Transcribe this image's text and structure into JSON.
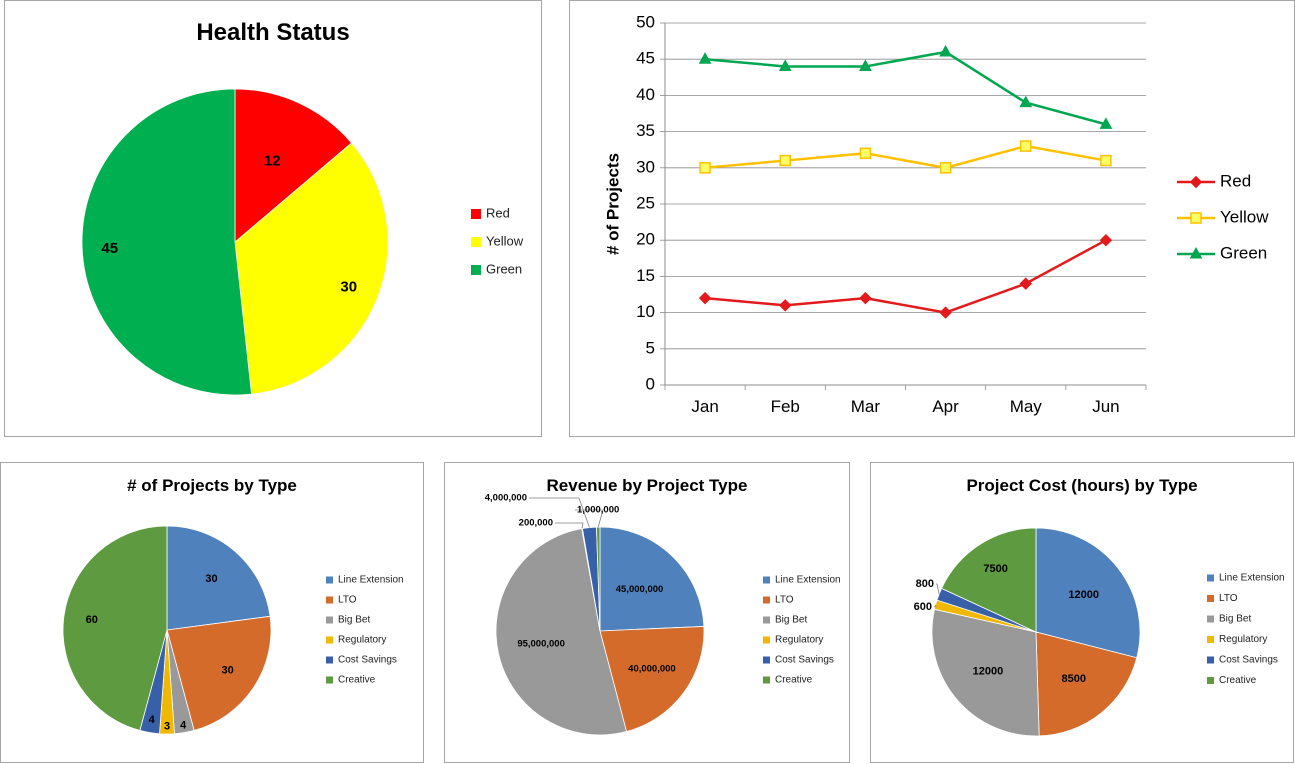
{
  "chart_data": [
    {
      "id": "health-status",
      "type": "pie",
      "title": "Health Status",
      "legend_position": "right",
      "categories": [
        "Red",
        "Yellow",
        "Green"
      ],
      "values": [
        12,
        30,
        45
      ],
      "value_labels": [
        "12",
        "30",
        "45"
      ],
      "colors": [
        "#ff0000",
        "#ffff00",
        "#00b050"
      ]
    },
    {
      "id": "projects-trend",
      "type": "line",
      "title": "",
      "xlabel": "",
      "ylabel": "# of Projects",
      "categories": [
        "Jan",
        "Feb",
        "Mar",
        "Apr",
        "May",
        "Jun"
      ],
      "ylim": [
        0,
        50
      ],
      "yticks": [
        "0",
        "5",
        "10",
        "15",
        "20",
        "25",
        "30",
        "35",
        "40",
        "45",
        "50"
      ],
      "grid": true,
      "legend_position": "right",
      "series": [
        {
          "name": "Red",
          "values": [
            12,
            11,
            12,
            10,
            14,
            20
          ],
          "color": "#e31a1c",
          "marker": "diamond"
        },
        {
          "name": "Yellow",
          "values": [
            30,
            31,
            32,
            30,
            33,
            31
          ],
          "color": "#ffc000",
          "marker": "square"
        },
        {
          "name": "Green",
          "values": [
            45,
            44,
            44,
            46,
            39,
            36
          ],
          "color": "#00a650",
          "marker": "triangle"
        }
      ]
    },
    {
      "id": "projects-by-type",
      "type": "pie",
      "title": "# of Projects by Type",
      "legend_position": "right",
      "categories": [
        "Line Extension",
        "LTO",
        "Big Bet",
        "Regulatory",
        "Cost Savings",
        "Creative"
      ],
      "values": [
        30,
        30,
        4,
        3,
        4,
        60
      ],
      "value_labels": [
        "30",
        "30",
        "4",
        "3",
        "4",
        "60"
      ],
      "colors": [
        "#4f81bd",
        "#d46b2b",
        "#999999",
        "#f0b800",
        "#3860a8",
        "#5e9a40"
      ]
    },
    {
      "id": "revenue-by-type",
      "type": "pie",
      "title": "Revenue by Project Type",
      "legend_position": "right",
      "categories": [
        "Line Extension",
        "LTO",
        "Big Bet",
        "Regulatory",
        "Cost Savings",
        "Creative"
      ],
      "values": [
        45000000,
        40000000,
        95000000,
        200000,
        4000000,
        1000000
      ],
      "value_labels": [
        "45,000,000",
        "40,000,000",
        "95,000,000",
        "200,000",
        "4,000,000",
        "1,000,000"
      ],
      "colors": [
        "#4f81bd",
        "#d46b2b",
        "#999999",
        "#f0b800",
        "#3860a8",
        "#5e9a40"
      ]
    },
    {
      "id": "cost-by-type",
      "type": "pie",
      "title": "Project Cost (hours) by Type",
      "legend_position": "right",
      "categories": [
        "Line Extension",
        "LTO",
        "Big Bet",
        "Regulatory",
        "Cost Savings",
        "Creative"
      ],
      "values": [
        12000,
        8500,
        12000,
        600,
        800,
        7500
      ],
      "value_labels": [
        "12000",
        "8500",
        "12000",
        "600",
        "800",
        "7500"
      ],
      "colors": [
        "#4f81bd",
        "#d46b2b",
        "#999999",
        "#f0b800",
        "#3860a8",
        "#5e9a40"
      ]
    }
  ]
}
